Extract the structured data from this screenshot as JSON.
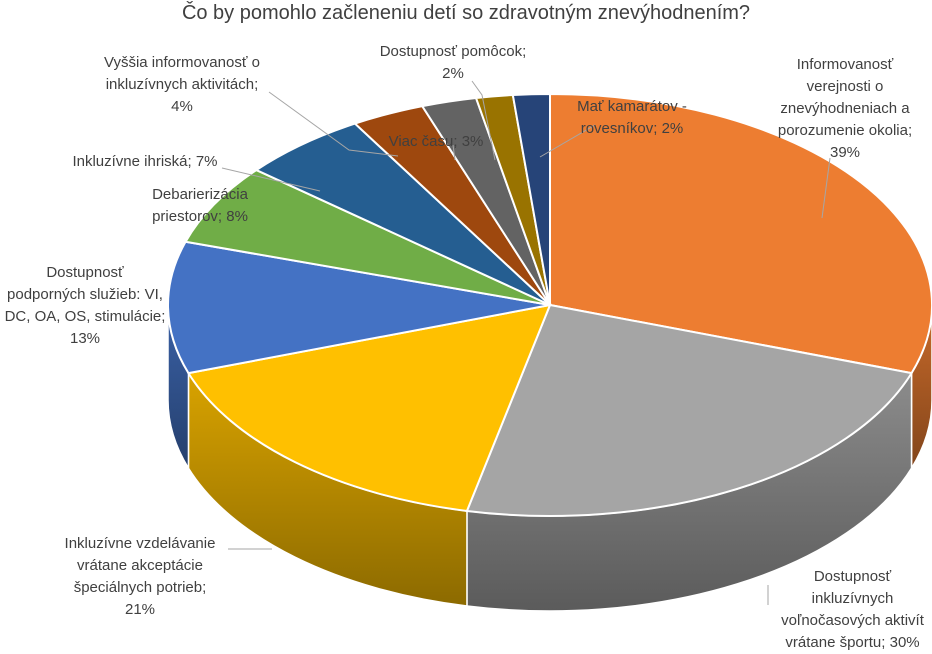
{
  "chart_data": {
    "type": "pie",
    "title": "Čo by pomohlo začleneniu detí so zdravotným znevýhodnením?",
    "slices": [
      {
        "label": "Informovanosť verejnosti o znevýhodneniach a porozumenie okolia",
        "value": 39,
        "display": "Informovanosť\nverejnosti o\nznevýhodneniach a\nporozumenie okolia;\n39%",
        "color": "#ED7D31"
      },
      {
        "label": "Dostupnosť inkluzívnych voľnočasových aktivít vrátane športu",
        "value": 30,
        "display": "Dostupnosť\ninkluzívnych\nvoľnočasových aktivít\nvrátane športu; 30%",
        "color": "#A5A5A5"
      },
      {
        "label": "Inkluzívne vzdelávanie vrátane akceptácie špeciálnych potrieb",
        "value": 21,
        "display": "Inkluzívne vzdelávanie\nvrátane akceptácie\nšpeciálnych potrieb;\n21%",
        "color": "#FFC000"
      },
      {
        "label": "Dostupnosť podporných služieb: VI, DC, OA, OS, stimulácie",
        "value": 13,
        "display": "Dostupnosť\npodporných služieb: VI,\nDC, OA, OS, stimulácie;\n13%",
        "color": "#4472C4"
      },
      {
        "label": "Debarierizácia priestorov",
        "value": 8,
        "display": "Debarierizácia\npriestorov; 8%",
        "color": "#70AD47"
      },
      {
        "label": "Inkluzívne ihriská",
        "value": 7,
        "display": "Inkluzívne ihriská; 7%",
        "color": "#255E91"
      },
      {
        "label": "Vyššia informovanosť o inkluzívnych aktivitách",
        "value": 4,
        "display": "Vyššia informovanosť o\ninkluzívnych aktivitách;\n4%",
        "color": "#9E480E"
      },
      {
        "label": "Viac času",
        "value": 3,
        "display": "Viac času; 3%",
        "color": "#636363"
      },
      {
        "label": "Dostupnosť pomôcok",
        "value": 2,
        "display": "Dostupnosť pomôcok;\n2%",
        "color": "#997300"
      },
      {
        "label": "Mať kamarátov - rovesníkov",
        "value": 2,
        "display": "Mať kamarátov -\nrovesníkov; 2%",
        "color": "#264478"
      }
    ]
  }
}
